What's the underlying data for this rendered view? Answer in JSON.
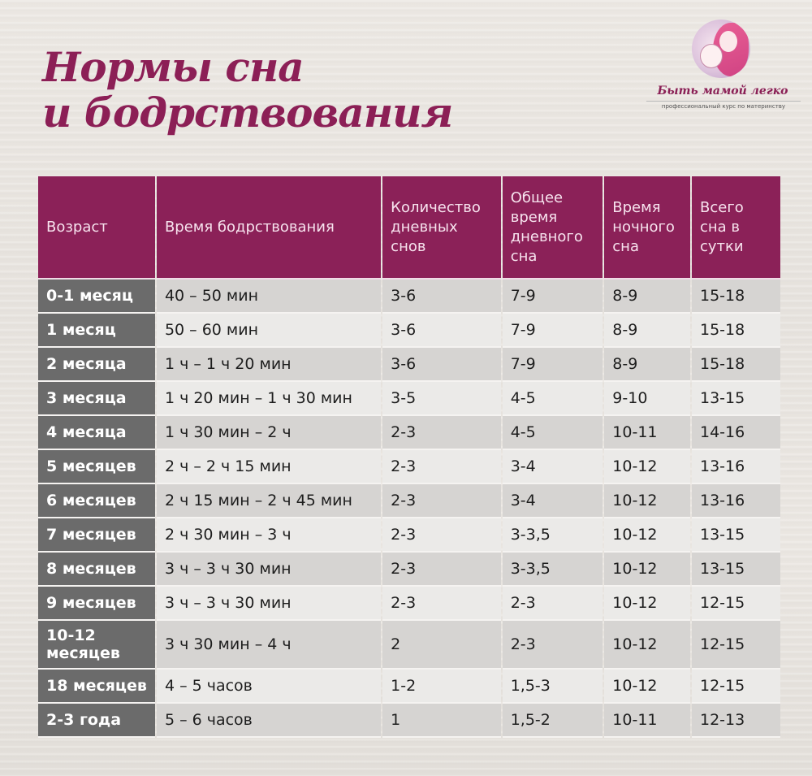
{
  "title": {
    "line1": "Нормы сна",
    "line2": "и бодрствования"
  },
  "logo": {
    "icon": "mother-and-baby-logo-icon",
    "name": "Быть мамой легко",
    "tagline": "профессиональный курс по материнству"
  },
  "colors": {
    "header_bg": "#8b2158",
    "title": "#8c1f56",
    "age_cell_bg": "#6b6b6b",
    "row_dark": "#d6d4d2",
    "row_light": "#ebeae8"
  },
  "table": {
    "headers": [
      "Возраст",
      "Время бодрствования",
      "Количество дневных снов",
      "Общее время дневного сна",
      "Время ночного сна",
      "Всего сна в сутки"
    ],
    "rows": [
      {
        "age": "0-1 месяц",
        "awake": "40 – 50 мин",
        "naps": "3-6",
        "day_sleep": "7-9",
        "night_sleep": "8-9",
        "total": "15-18"
      },
      {
        "age": "1 месяц",
        "awake": "50 – 60 мин",
        "naps": "3-6",
        "day_sleep": "7-9",
        "night_sleep": "8-9",
        "total": "15-18"
      },
      {
        "age": "2 месяца",
        "awake": "1 ч – 1 ч 20 мин",
        "naps": "3-6",
        "day_sleep": "7-9",
        "night_sleep": "8-9",
        "total": "15-18"
      },
      {
        "age": "3 месяца",
        "awake": "1 ч 20 мин – 1 ч 30 мин",
        "naps": "3-5",
        "day_sleep": "4-5",
        "night_sleep": "9-10",
        "total": "13-15"
      },
      {
        "age": "4 месяца",
        "awake": "1 ч 30 мин – 2 ч",
        "naps": "2-3",
        "day_sleep": "4-5",
        "night_sleep": "10-11",
        "total": "14-16"
      },
      {
        "age": "5 месяцев",
        "awake": "2 ч – 2 ч 15 мин",
        "naps": "2-3",
        "day_sleep": "3-4",
        "night_sleep": "10-12",
        "total": "13-16"
      },
      {
        "age": "6 месяцев",
        "awake": "2 ч 15 мин – 2 ч 45 мин",
        "naps": "2-3",
        "day_sleep": "3-4",
        "night_sleep": "10-12",
        "total": "13-16"
      },
      {
        "age": "7 месяцев",
        "awake": "2 ч 30 мин – 3 ч",
        "naps": "2-3",
        "day_sleep": "3-3,5",
        "night_sleep": "10-12",
        "total": "13-15"
      },
      {
        "age": "8 месяцев",
        "awake": "3 ч – 3 ч 30 мин",
        "naps": "2-3",
        "day_sleep": "3-3,5",
        "night_sleep": "10-12",
        "total": "13-15"
      },
      {
        "age": "9 месяцев",
        "awake": "3 ч – 3 ч 30 мин",
        "naps": "2-3",
        "day_sleep": "2-3",
        "night_sleep": "10-12",
        "total": "12-15"
      },
      {
        "age": "10-12 месяцев",
        "awake": "3 ч 30 мин – 4 ч",
        "naps": "2",
        "day_sleep": "2-3",
        "night_sleep": "10-12",
        "total": "12-15"
      },
      {
        "age": "18 месяцев",
        "awake": "4 – 5 часов",
        "naps": "1-2",
        "day_sleep": "1,5-3",
        "night_sleep": "10-12",
        "total": "12-15"
      },
      {
        "age": "2-3 года",
        "awake": "5 – 6 часов",
        "naps": "1",
        "day_sleep": "1,5-2",
        "night_sleep": "10-11",
        "total": "12-13"
      }
    ]
  }
}
